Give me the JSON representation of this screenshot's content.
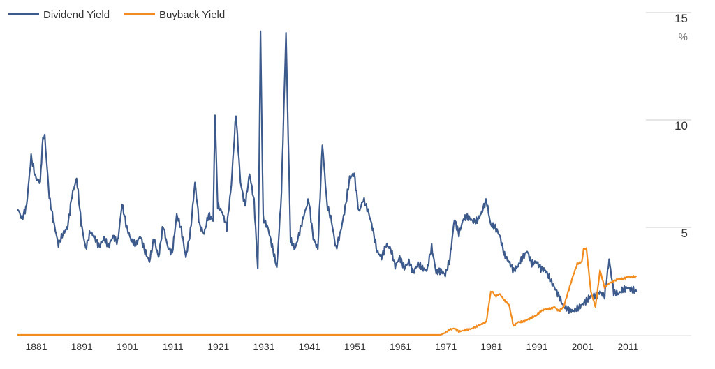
{
  "chart_data": {
    "type": "line",
    "title": "",
    "xlabel": "",
    "ylabel": "",
    "y_unit": "%",
    "xlim": [
      1879,
      2016
    ],
    "ylim": [
      0,
      15
    ],
    "x_ticks": [
      1881,
      1891,
      1901,
      1911,
      1921,
      1931,
      1941,
      1951,
      1961,
      1971,
      1981,
      1991,
      2001,
      2011
    ],
    "y_ticks": [
      5,
      10,
      15
    ],
    "grid": "horizontal",
    "legend": "top-left",
    "series": [
      {
        "name": "Dividend Yield",
        "color": "#3d5a8c",
        "x": [
          1879,
          1880,
          1881,
          1882,
          1883,
          1884,
          1885,
          1886,
          1887,
          1888,
          1889,
          1890,
          1891,
          1892,
          1893,
          1894,
          1895,
          1896,
          1897,
          1898,
          1899,
          1900,
          1901,
          1902,
          1903,
          1904,
          1905,
          1906,
          1907,
          1908,
          1909,
          1910,
          1911,
          1912,
          1913,
          1914,
          1915,
          1916,
          1917,
          1918,
          1919,
          1920,
          1921,
          1922,
          1923,
          1924,
          1925,
          1926,
          1927,
          1928,
          1929,
          1930,
          1931,
          1932,
          1933,
          1934,
          1935,
          1936,
          1937,
          1938,
          1939,
          1940,
          1941,
          1942,
          1943,
          1944,
          1945,
          1946,
          1947,
          1948,
          1949,
          1950,
          1951,
          1952,
          1953,
          1954,
          1955,
          1956,
          1957,
          1958,
          1959,
          1960,
          1961,
          1962,
          1963,
          1964,
          1965,
          1966,
          1967,
          1968,
          1969,
          1970,
          1971,
          1972,
          1973,
          1974,
          1975,
          1976,
          1977,
          1978,
          1979,
          1980,
          1981,
          1982,
          1983,
          1984,
          1985,
          1986,
          1987,
          1988,
          1989,
          1990,
          1991,
          1992,
          1993,
          1994,
          1995,
          1996,
          1997,
          1998,
          1999,
          2000,
          2001,
          2002,
          2003,
          2004,
          2005,
          2006,
          2007,
          2008,
          2009,
          2010,
          2011,
          2012,
          2013,
          2014,
          2015
        ],
        "values": [
          5.9,
          5.4,
          6.0,
          8.3,
          7.3,
          7.1,
          9.2,
          6.4,
          5.2,
          4.2,
          4.7,
          5.0,
          6.5,
          7.3,
          5.2,
          4.0,
          4.8,
          4.5,
          4.1,
          4.5,
          4.1,
          4.6,
          4.3,
          6.1,
          5.0,
          4.4,
          4.2,
          4.6,
          3.9,
          3.4,
          4.5,
          3.6,
          5.1,
          4.1,
          3.8,
          5.6,
          4.9,
          3.6,
          4.8,
          7.1,
          5.1,
          4.7,
          5.6,
          5.3,
          6.0,
          5.7,
          5.0,
          7.0,
          10.3,
          7.1,
          6.0,
          7.5,
          6.2,
          6.0,
          5.4,
          5.0,
          4.1,
          3.1,
          6.6,
          14.0,
          4.4,
          4.0,
          4.8,
          5.6,
          6.3,
          4.5,
          4.0,
          8.9,
          6.1,
          5.3,
          4.0,
          4.8,
          5.9,
          7.3,
          7.5,
          5.7,
          6.3,
          5.8,
          5.0,
          3.9,
          3.6,
          4.2,
          4.0,
          3.2,
          3.6,
          3.1,
          3.4,
          2.9,
          3.3,
          3.1,
          3.0,
          4.1,
          2.9,
          3.0,
          2.8,
          3.5,
          5.4,
          4.7,
          5.4,
          5.5,
          5.3,
          5.3,
          5.7,
          6.3,
          5.1,
          5.0,
          4.6,
          3.7,
          3.4,
          3.0,
          3.2,
          3.6,
          3.9,
          3.3,
          3.4,
          3.1,
          3.0,
          2.6,
          2.2,
          1.8,
          1.3,
          1.2,
          1.1,
          1.2,
          1.4,
          1.6,
          1.8,
          1.8,
          2.0,
          1.8,
          3.5,
          2.0,
          1.9,
          2.1,
          2.2,
          2.1,
          2.0
        ],
        "highlights": [
          {
            "x": 1884.6,
            "value": 9.2
          },
          {
            "x": 1922.4,
            "value": 10.3
          },
          {
            "x": 1931.8,
            "value": 3.1
          },
          {
            "x": 1932.4,
            "value": 14.0
          }
        ]
      },
      {
        "name": "Buyback Yield",
        "color": "#f28c1e",
        "x": [
          1879,
          1970,
          1971,
          1972,
          1973,
          1974,
          1975,
          1976,
          1977,
          1978,
          1979,
          1980,
          1981,
          1982,
          1983,
          1984,
          1985,
          1986,
          1987,
          1988,
          1989,
          1990,
          1991,
          1992,
          1993,
          1994,
          1995,
          1996,
          1997,
          1998,
          1999,
          2000,
          2001,
          2002,
          2003,
          2004,
          2005,
          2006,
          2007,
          2008,
          2009,
          2010,
          2011,
          2012,
          2013,
          2014,
          2015
        ],
        "values": [
          0,
          0,
          0,
          0,
          0.1,
          0.25,
          0.3,
          0.15,
          0.2,
          0.25,
          0.3,
          0.4,
          0.5,
          0.6,
          2.0,
          1.8,
          1.9,
          1.6,
          1.4,
          0.4,
          0.6,
          0.6,
          0.7,
          0.8,
          0.9,
          1.1,
          1.2,
          1.2,
          1.3,
          1.1,
          1.3,
          2.0,
          2.7,
          3.3,
          3.4,
          4.0,
          2.0,
          1.3,
          3.0,
          2.2,
          2.4,
          2.5,
          2.6,
          2.6,
          2.7,
          2.7,
          2.7
        ],
        "highlights": [
          {
            "x": 1983.4,
            "value": 2.0
          },
          {
            "x": 2003.4,
            "value": 4.0
          },
          {
            "x": 2007.0,
            "value": 3.0
          }
        ]
      }
    ]
  }
}
